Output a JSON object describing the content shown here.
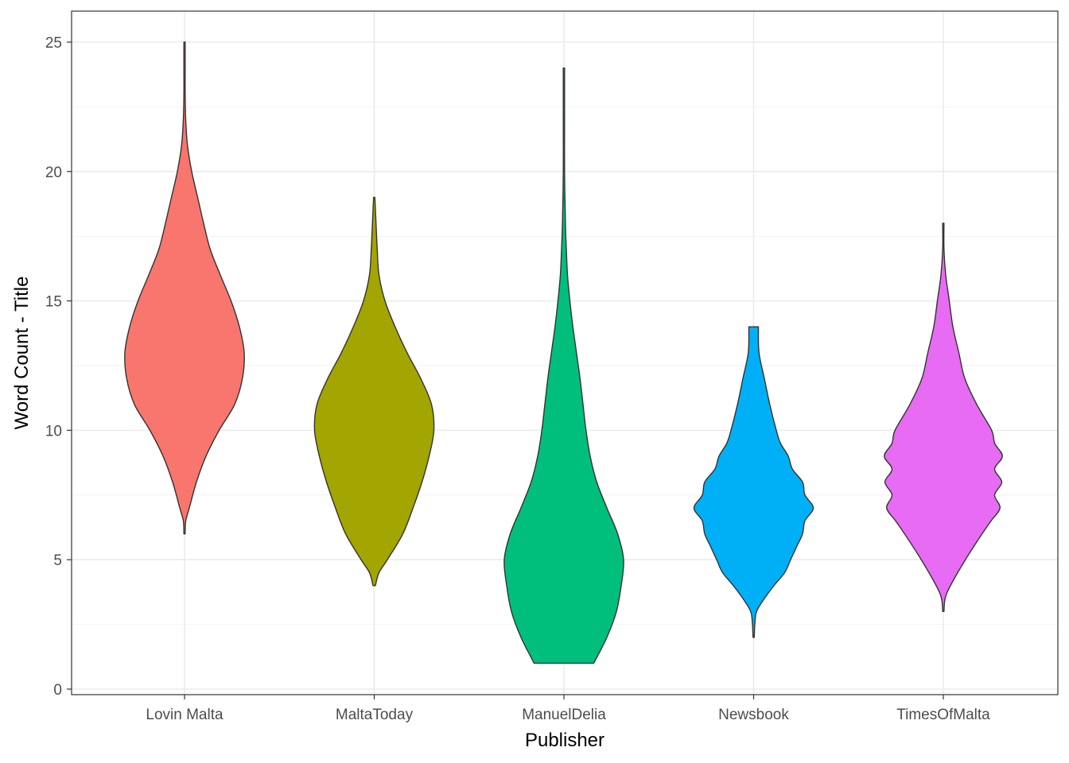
{
  "chart_data": {
    "type": "violin",
    "title": "",
    "xlabel": "Publisher",
    "ylabel": "Word Count - Title",
    "ylim": [
      0,
      25
    ],
    "yticks": [
      0,
      5,
      10,
      15,
      20,
      25
    ],
    "grid": true,
    "legend": "none",
    "categories": [
      "Lovin Malta",
      "MaltaToday",
      "ManuelDelia",
      "Newsbook",
      "TimesOfMalta"
    ],
    "series": [
      {
        "category": "Lovin Malta",
        "color": "#F8766D",
        "min": 6,
        "max": 25,
        "density": [
          [
            6,
            0.0
          ],
          [
            6.5,
            0.02
          ],
          [
            7,
            0.08
          ],
          [
            8,
            0.2
          ],
          [
            9,
            0.36
          ],
          [
            10,
            0.58
          ],
          [
            11,
            0.84
          ],
          [
            12,
            0.97
          ],
          [
            13,
            1.0
          ],
          [
            14,
            0.92
          ],
          [
            15,
            0.78
          ],
          [
            16,
            0.6
          ],
          [
            17,
            0.43
          ],
          [
            18,
            0.32
          ],
          [
            19,
            0.22
          ],
          [
            20,
            0.12
          ],
          [
            21,
            0.05
          ],
          [
            22,
            0.02
          ],
          [
            23,
            0.005
          ],
          [
            24,
            0.003
          ],
          [
            25,
            0.0
          ]
        ]
      },
      {
        "category": "MaltaToday",
        "color": "#A3A500",
        "min": 4,
        "max": 19,
        "density": [
          [
            4,
            0.02
          ],
          [
            4.5,
            0.08
          ],
          [
            5,
            0.22
          ],
          [
            6,
            0.48
          ],
          [
            7,
            0.65
          ],
          [
            8,
            0.8
          ],
          [
            9,
            0.92
          ],
          [
            10,
            1.0
          ],
          [
            11,
            0.96
          ],
          [
            12,
            0.78
          ],
          [
            13,
            0.55
          ],
          [
            14,
            0.35
          ],
          [
            15,
            0.18
          ],
          [
            16,
            0.08
          ],
          [
            17,
            0.05
          ],
          [
            18,
            0.03
          ],
          [
            19,
            0.0
          ]
        ]
      },
      {
        "category": "ManuelDelia",
        "color": "#00BF7D",
        "min": 1,
        "max": 24,
        "density": [
          [
            1,
            0.5
          ],
          [
            2,
            0.72
          ],
          [
            3,
            0.88
          ],
          [
            4,
            0.96
          ],
          [
            5,
            1.0
          ],
          [
            6,
            0.9
          ],
          [
            7,
            0.72
          ],
          [
            8,
            0.55
          ],
          [
            9,
            0.44
          ],
          [
            10,
            0.37
          ],
          [
            11,
            0.32
          ],
          [
            12,
            0.27
          ],
          [
            13,
            0.21
          ],
          [
            14,
            0.15
          ],
          [
            15,
            0.1
          ],
          [
            16,
            0.06
          ],
          [
            17,
            0.04
          ],
          [
            18,
            0.025
          ],
          [
            20,
            0.01
          ],
          [
            22,
            0.005
          ],
          [
            24,
            0.0
          ]
        ]
      },
      {
        "category": "Newsbook",
        "color": "#00B0F6",
        "min": 2,
        "max": 14,
        "density": [
          [
            2,
            0.0
          ],
          [
            2.5,
            0.02
          ],
          [
            3,
            0.05
          ],
          [
            3.5,
            0.18
          ],
          [
            4,
            0.34
          ],
          [
            4.5,
            0.52
          ],
          [
            5,
            0.62
          ],
          [
            5.5,
            0.72
          ],
          [
            6,
            0.82
          ],
          [
            6.5,
            0.86
          ],
          [
            7,
            1.0
          ],
          [
            7.5,
            0.86
          ],
          [
            8,
            0.82
          ],
          [
            8.5,
            0.65
          ],
          [
            9,
            0.58
          ],
          [
            9.5,
            0.45
          ],
          [
            10,
            0.38
          ],
          [
            11,
            0.27
          ],
          [
            12,
            0.18
          ],
          [
            13,
            0.09
          ],
          [
            14,
            0.08
          ]
        ]
      },
      {
        "category": "TimesOfMalta",
        "color": "#E76BF3",
        "min": 3,
        "max": 18,
        "density": [
          [
            3,
            0.0
          ],
          [
            3.5,
            0.03
          ],
          [
            4,
            0.12
          ],
          [
            5,
            0.37
          ],
          [
            6,
            0.65
          ],
          [
            6.5,
            0.8
          ],
          [
            7,
            0.95
          ],
          [
            7.5,
            0.86
          ],
          [
            8,
            0.98
          ],
          [
            8.5,
            0.86
          ],
          [
            9,
            0.99
          ],
          [
            9.5,
            0.86
          ],
          [
            10,
            0.81
          ],
          [
            11,
            0.56
          ],
          [
            12,
            0.36
          ],
          [
            13,
            0.26
          ],
          [
            14,
            0.16
          ],
          [
            15,
            0.1
          ],
          [
            16,
            0.04
          ],
          [
            17,
            0.01
          ],
          [
            18,
            0.0
          ]
        ]
      }
    ]
  }
}
